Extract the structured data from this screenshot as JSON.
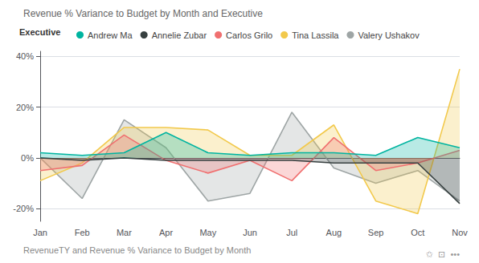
{
  "chart_data": {
    "type": "area",
    "title": "Revenue % Variance to Budget by Month and Executive",
    "subtitle": "RevenueTY and Revenue % Variance to Budget by Month",
    "legend_title": "Executive",
    "annotations": [
      "✩  ⊡  •••"
    ],
    "categories": [
      "Jan",
      "Feb",
      "Mar",
      "Apr",
      "May",
      "Jun",
      "Jul",
      "Aug",
      "Sep",
      "Oct",
      "Nov"
    ],
    "series": [
      {
        "name": "Andrew Ma",
        "color": "#00B4A0",
        "values": [
          2,
          1,
          2,
          10,
          2,
          1,
          2,
          2,
          1,
          8,
          4
        ]
      },
      {
        "name": "Annelie Zubar",
        "color": "#374040",
        "values": [
          0,
          -1,
          0,
          -1,
          -1,
          -1,
          -1,
          -2,
          -2,
          -2,
          -18
        ]
      },
      {
        "name": "Carlos Grilo",
        "color": "#F07070",
        "values": [
          -5,
          -3,
          9,
          -1,
          -6,
          -1,
          -9,
          8,
          -5,
          -2,
          3
        ]
      },
      {
        "name": "Tina Lassila",
        "color": "#F2C94C",
        "values": [
          -9,
          -2,
          12,
          12,
          11,
          1,
          1,
          13,
          -17,
          -22,
          35
        ]
      },
      {
        "name": "Valery Ushakov",
        "color": "#9EA5A5",
        "values": [
          0,
          -16,
          15,
          4,
          -17,
          -14,
          18,
          -4,
          -10,
          -5,
          -17
        ]
      }
    ],
    "ylim": [
      -25,
      42
    ],
    "yticks": [
      {
        "value": -20,
        "label": "-20%"
      },
      {
        "value": 0,
        "label": "0%"
      },
      {
        "value": 20,
        "label": "20%"
      },
      {
        "value": 40,
        "label": "40%"
      }
    ],
    "grid": true
  }
}
